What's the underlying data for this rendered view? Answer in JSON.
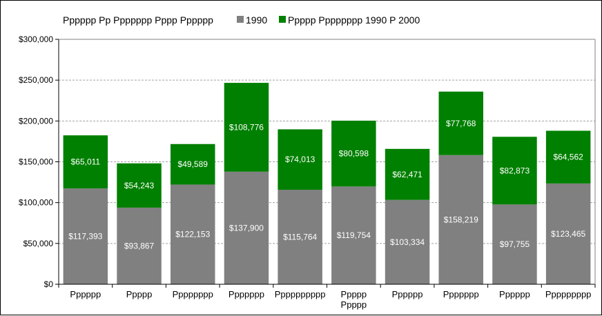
{
  "chart_data": {
    "type": "bar",
    "stacked": true,
    "categories": [
      "Pppppp",
      "Ppppp",
      "Pppppppp",
      "Ppppppp",
      "Pppppppppp",
      "Ppppp\nPpppp",
      "Pppppp",
      "Ppppppp",
      "Pppppp",
      "Ppppppppp"
    ],
    "series": [
      {
        "name": "1990",
        "color": "#808080",
        "values": [
          117393,
          93867,
          122153,
          137900,
          115764,
          119754,
          103334,
          158219,
          97755,
          123465
        ],
        "labels": [
          "$117,393",
          "$93,867",
          "$122,153",
          "$137,900",
          "$115,764",
          "$119,754",
          "$103,334",
          "$158,219",
          "$97,755",
          "$123,465"
        ]
      },
      {
        "name": "Ppppp Pppppppp 1990 P 2000",
        "color": "#008000",
        "values": [
          65011,
          54243,
          49589,
          108776,
          74013,
          80598,
          62471,
          77768,
          82873,
          64562
        ],
        "labels": [
          "$65,011",
          "$54,243",
          "$49,589",
          "$108,776",
          "$74,013",
          "$80,598",
          "$62,471",
          "$77,768",
          "$82,873",
          "$64,562"
        ]
      }
    ],
    "legend_title": "Pppppp Pp Ppppppp Pppp Pppppp",
    "legend_position": "top",
    "ylim": [
      0,
      300000
    ],
    "yticks": [
      0,
      50000,
      100000,
      150000,
      200000,
      250000,
      300000
    ],
    "ytick_labels": [
      "$0",
      "$50,000",
      "$100,000",
      "$150,000",
      "$200,000",
      "$250,000",
      "$300,000"
    ],
    "grid": true,
    "plot_background": "#ffffff",
    "grid_color": "#a0a0a0"
  }
}
